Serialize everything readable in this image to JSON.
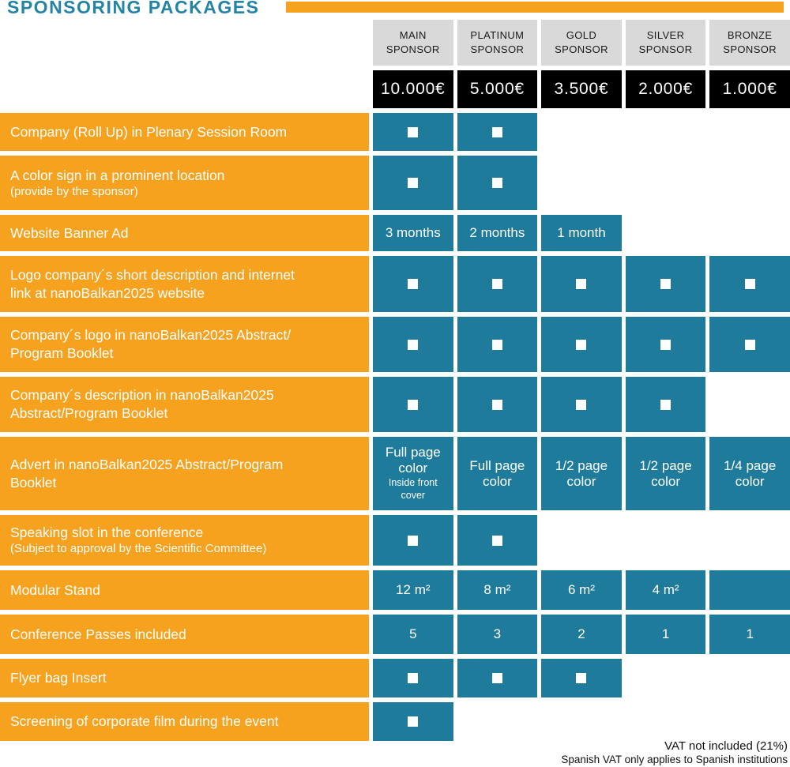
{
  "title": "SPONSORING PACKAGES",
  "colors": {
    "orange": "#F6A21E",
    "teal": "#1F7B9B",
    "header_grey": "#D9D9D9",
    "price_bg": "#000000",
    "title_blue": "#2484A6"
  },
  "icons": {
    "check": "white-square-icon"
  },
  "columns": [
    {
      "label": "MAIN\nSPONSOR",
      "price": "10.000€"
    },
    {
      "label": "PLATINUM\nSPONSOR",
      "price": "5.000€"
    },
    {
      "label": "GOLD\nSPONSOR",
      "price": "3.500€"
    },
    {
      "label": "SILVER\nSPONSOR",
      "price": "2.000€"
    },
    {
      "label": "BRONZE\nSPONSOR",
      "price": "1.000€"
    }
  ],
  "rows": [
    {
      "label": "Company (Roll Up) in Plenary Session Room",
      "cells": [
        "check",
        "check",
        null,
        null,
        null
      ]
    },
    {
      "label": "A color sign in a prominent location",
      "sublabel": "(provide by the sponsor)",
      "cells": [
        "check",
        "check",
        null,
        null,
        null
      ]
    },
    {
      "label": "Website Banner Ad",
      "cells": [
        {
          "text": "3 months"
        },
        {
          "text": "2 months"
        },
        {
          "text": "1 month"
        },
        null,
        null
      ]
    },
    {
      "label": "Logo company´s short description and internet\nlink at nanoBalkan2025 website",
      "cells": [
        "check",
        "check",
        "check",
        "check",
        "check"
      ]
    },
    {
      "label": "Company´s logo in nanoBalkan2025 Abstract/\nProgram Booklet",
      "cells": [
        "check",
        "check",
        "check",
        "check",
        "check"
      ]
    },
    {
      "label": "Company´s description in nanoBalkan2025\nAbstract/Program Booklet",
      "cells": [
        "check",
        "check",
        "check",
        "check",
        null
      ]
    },
    {
      "label": "Advert in nanoBalkan2025 Abstract/Program\nBooklet",
      "cells": [
        {
          "text": "Full page\ncolor",
          "sub": "Inside front\ncover"
        },
        {
          "text": "Full page\ncolor"
        },
        {
          "text": "1/2 page\ncolor"
        },
        {
          "text": "1/2 page\ncolor"
        },
        {
          "text": "1/4 page\ncolor"
        }
      ]
    },
    {
      "label": "Speaking slot in the conference",
      "sublabel": "(Subject to approval by the Scientific Committee)",
      "cells": [
        "check",
        "check",
        null,
        null,
        null
      ]
    },
    {
      "label": "Modular Stand",
      "cells": [
        {
          "text": "12 m²"
        },
        {
          "text": "8 m²"
        },
        {
          "text": "6 m²"
        },
        {
          "text": "4 m²"
        },
        {
          "text": ""
        }
      ]
    },
    {
      "label": "Conference Passes included",
      "cells": [
        {
          "text": "5"
        },
        {
          "text": "3"
        },
        {
          "text": "2"
        },
        {
          "text": "1"
        },
        {
          "text": "1"
        }
      ]
    },
    {
      "label": "Flyer bag Insert",
      "cells": [
        "check",
        "check",
        "check",
        null,
        null
      ]
    },
    {
      "label": "Screening of corporate film during the event",
      "cells": [
        "check",
        null,
        null,
        null,
        null
      ]
    }
  ],
  "footer": {
    "line1": "VAT not included (21%)",
    "line2": "Spanish VAT only applies to Spanish institutions"
  }
}
